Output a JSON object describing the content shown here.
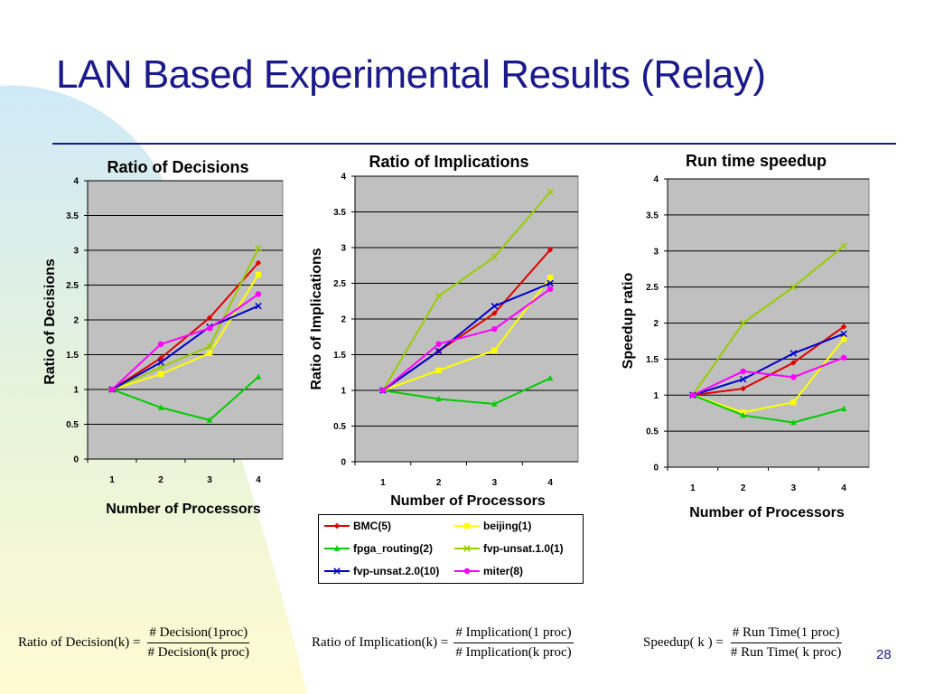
{
  "slide": {
    "title": "LAN Based Experimental Results (Relay)",
    "page_number": "28",
    "title_color": "#1a1a8c"
  },
  "legend": [
    {
      "name": "BMC(5)",
      "color": "#e00000",
      "marker": "diamond"
    },
    {
      "name": "beijing(1)",
      "color": "#ffff00",
      "marker": "square"
    },
    {
      "name": "fpga_routing(2)",
      "color": "#00cc00",
      "marker": "triangle"
    },
    {
      "name": "fvp-unsat.1.0(1)",
      "color": "#99cc00",
      "marker": "x"
    },
    {
      "name": "fvp-unsat.2.0(10)",
      "color": "#0000cc",
      "marker": "x"
    },
    {
      "name": "miter(8)",
      "color": "#ff00ff",
      "marker": "circle"
    }
  ],
  "formulas": {
    "decision": {
      "lhs": "Ratio of  Decision(k) =",
      "num": "# Decision(1proc)",
      "den": "# Decision(k proc)"
    },
    "implication": {
      "lhs": "Ratio of  Implication(k) =",
      "num": "# Implication(1 proc)",
      "den": "# Implication(k proc)"
    },
    "speedup": {
      "lhs": "Speedup( k ) =",
      "num": "# Run Time(1 proc)",
      "den": "# Run Time( k proc)"
    }
  },
  "chart_data": [
    {
      "type": "line",
      "title": "Ratio of Decisions",
      "xlabel": "Number of Processors",
      "ylabel": "Ratio of Decisions",
      "categories": [
        "1",
        "2",
        "3",
        "4"
      ],
      "ylim": [
        0,
        4
      ],
      "yticks": [
        "0",
        "0.5",
        "1",
        "1.5",
        "2",
        "2.5",
        "3",
        "3.5",
        "4"
      ],
      "grid": true,
      "series": [
        {
          "name": "BMC(5)",
          "values": [
            1,
            1.45,
            2.03,
            2.82
          ]
        },
        {
          "name": "beijing(1)",
          "values": [
            1,
            1.22,
            1.52,
            2.65
          ]
        },
        {
          "name": "fpga_routing(2)",
          "values": [
            1,
            0.74,
            0.56,
            1.18
          ]
        },
        {
          "name": "fvp-unsat.1.0(1)",
          "values": [
            1,
            1.32,
            1.62,
            3.03
          ]
        },
        {
          "name": "fvp-unsat.2.0(10)",
          "values": [
            1,
            1.39,
            1.9,
            2.2
          ]
        },
        {
          "name": "miter(8)",
          "values": [
            1,
            1.65,
            1.88,
            2.37
          ]
        }
      ]
    },
    {
      "type": "line",
      "title": "Ratio of Implications",
      "xlabel": "Number of Processors",
      "ylabel": "Ratio of Implications",
      "categories": [
        "1",
        "2",
        "3",
        "4"
      ],
      "ylim": [
        0,
        4
      ],
      "yticks": [
        "0",
        "0.5",
        "1",
        "1.5",
        "2",
        "2.5",
        "3",
        "3.5",
        "4"
      ],
      "grid": true,
      "series": [
        {
          "name": "BMC(5)",
          "values": [
            1,
            1.55,
            2.08,
            2.97
          ]
        },
        {
          "name": "beijing(1)",
          "values": [
            1,
            1.28,
            1.56,
            2.58
          ]
        },
        {
          "name": "fpga_routing(2)",
          "values": [
            1,
            0.88,
            0.81,
            1.17
          ]
        },
        {
          "name": "fvp-unsat.1.0(1)",
          "values": [
            1,
            2.32,
            2.87,
            3.78
          ]
        },
        {
          "name": "fvp-unsat.2.0(10)",
          "values": [
            1,
            1.55,
            2.18,
            2.5
          ]
        },
        {
          "name": "miter(8)",
          "values": [
            1,
            1.65,
            1.86,
            2.42
          ]
        }
      ]
    },
    {
      "type": "line",
      "title": "Run time speedup",
      "xlabel": "Number of Processors",
      "ylabel": "Speedup ratio",
      "categories": [
        "1",
        "2",
        "3",
        "4"
      ],
      "ylim": [
        0,
        4
      ],
      "yticks": [
        "0",
        "0.5",
        "1",
        "1.5",
        "2",
        "2.5",
        "3",
        "3.5",
        "4"
      ],
      "grid": true,
      "series": [
        {
          "name": "BMC(5)",
          "values": [
            1,
            1.09,
            1.45,
            1.95
          ]
        },
        {
          "name": "beijing(1)",
          "values": [
            1,
            0.76,
            0.9,
            1.78
          ]
        },
        {
          "name": "fpga_routing(2)",
          "values": [
            1,
            0.72,
            0.62,
            0.81
          ]
        },
        {
          "name": "fvp-unsat.1.0(1)",
          "values": [
            1,
            2.0,
            2.5,
            3.07
          ]
        },
        {
          "name": "fvp-unsat.2.0(10)",
          "values": [
            1,
            1.22,
            1.58,
            1.85
          ]
        },
        {
          "name": "miter(8)",
          "values": [
            1,
            1.33,
            1.25,
            1.52
          ]
        }
      ]
    }
  ]
}
